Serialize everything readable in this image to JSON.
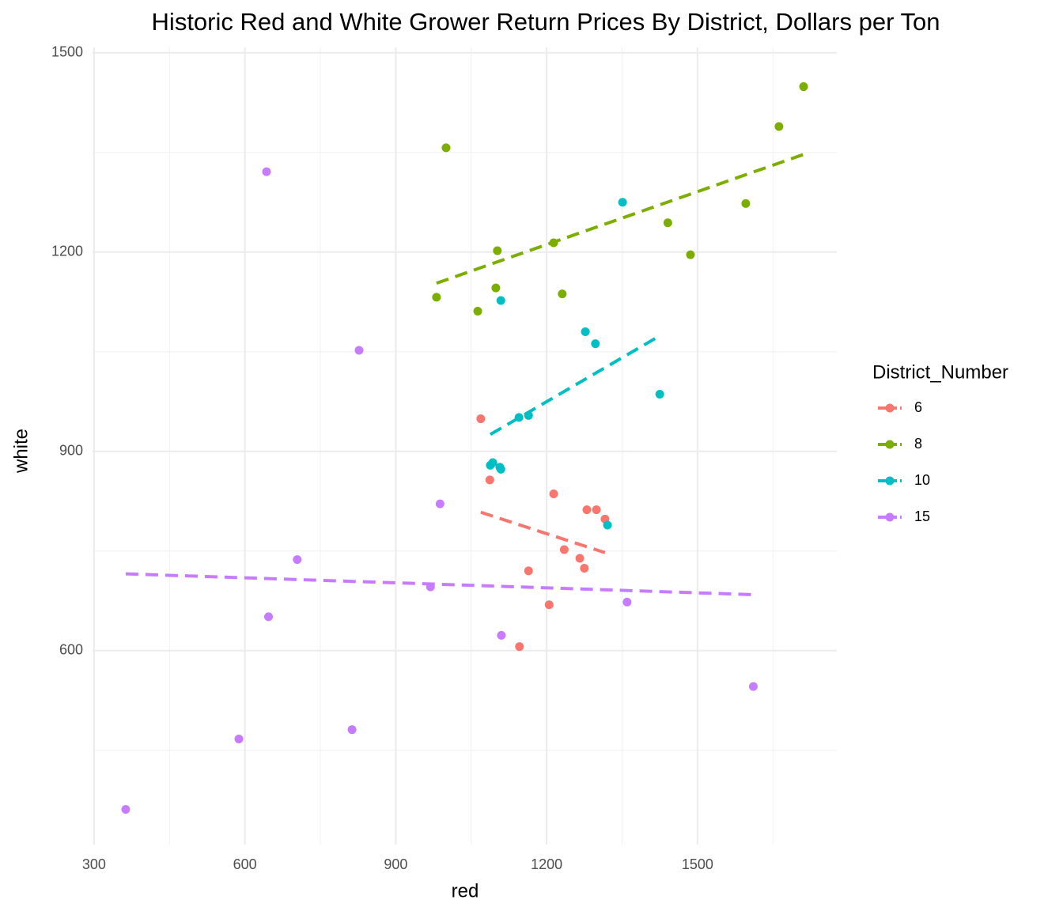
{
  "chart_data": {
    "type": "scatter",
    "title": "Historic Red and White Grower Return Prices By District, Dollars per Ton",
    "x_label": "red",
    "y_label": "white",
    "legend_title": "District_Number",
    "xlim": [
      297,
      1777
    ],
    "ylim": [
      308,
      1508
    ],
    "xticks": [
      300,
      600,
      900,
      1200,
      1500
    ],
    "yticks": [
      600,
      900,
      1200,
      1500
    ],
    "grid": true,
    "trend_lines": true,
    "legend_position": "right",
    "series": [
      {
        "name": "6",
        "color": "#F8766D",
        "x": [
          1069,
          1087,
          1214,
          1280,
          1299,
          1316,
          1235,
          1266,
          1275,
          1164,
          1205,
          1146
        ],
        "values": [
          949,
          857,
          836,
          812,
          812,
          798,
          752,
          739,
          724,
          720,
          669,
          606
        ]
      },
      {
        "name": "8",
        "color": "#7CAE00",
        "x": [
          1000,
          981,
          1063,
          1099,
          1102,
          1214,
          1231,
          1441,
          1486,
          1596,
          1662,
          1711
        ],
        "values": [
          1357,
          1132,
          1111,
          1146,
          1202,
          1214,
          1137,
          1244,
          1196,
          1273,
          1389,
          1449
        ]
      },
      {
        "name": "10",
        "color": "#00BFC4",
        "x": [
          1109,
          1277,
          1297,
          1351,
          1425,
          1145,
          1164,
          1088,
          1093,
          1107,
          1109,
          1321
        ],
        "values": [
          1127,
          1080,
          1062,
          1275,
          986,
          951,
          954,
          879,
          883,
          876,
          873,
          789
        ]
      },
      {
        "name": "15",
        "color": "#C77CFF",
        "x": [
          643,
          827,
          988,
          704,
          969,
          647,
          1110,
          1360,
          1611,
          813,
          588,
          363
        ],
        "values": [
          1321,
          1052,
          821,
          737,
          696,
          651,
          623,
          673,
          546,
          481,
          467,
          361
        ]
      }
    ]
  }
}
